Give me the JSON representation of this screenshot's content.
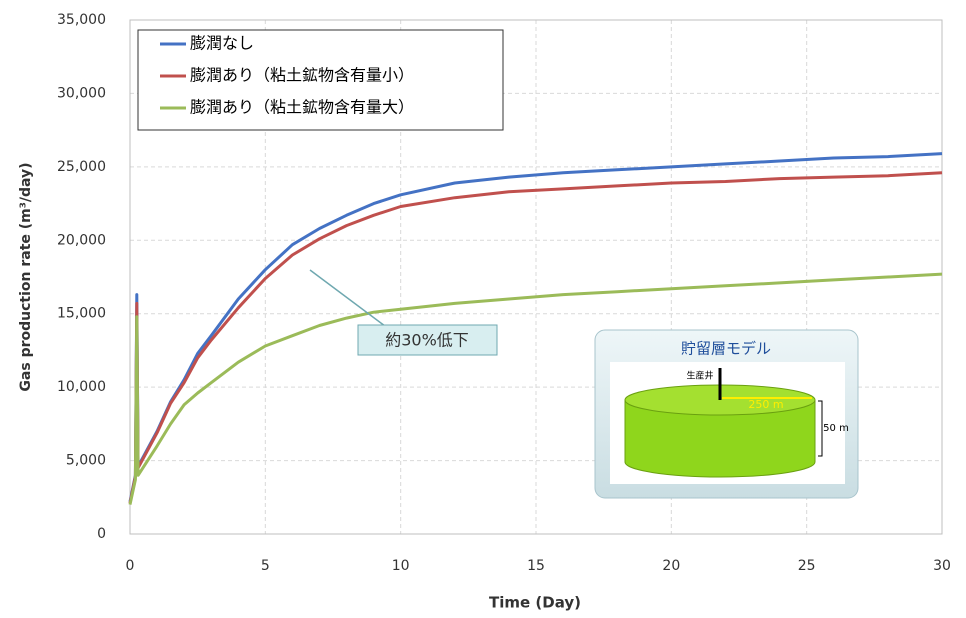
{
  "chart_data": {
    "type": "line",
    "x_label": "Time (Day)",
    "y_label": "Gas production rate (m³/day)",
    "x": [
      0,
      0.2,
      0.25,
      0.3,
      1,
      1.5,
      2,
      2.5,
      3,
      4,
      5,
      6,
      7,
      8,
      9,
      10,
      12,
      14,
      16,
      18,
      20,
      22,
      24,
      26,
      28,
      30
    ],
    "series": [
      {
        "name": "膨潤なし",
        "color": "#4472c4",
        "values": [
          2200,
          4000,
          16300,
          4600,
          7000,
          9000,
          10500,
          12300,
          13500,
          16000,
          18000,
          19700,
          20800,
          21700,
          22500,
          23100,
          23900,
          24300,
          24600,
          24800,
          25000,
          25200,
          25400,
          25600,
          25700,
          25900
        ]
      },
      {
        "name": "膨潤あり（粘土鉱物含有量小）",
        "color": "#c0504d",
        "values": [
          2100,
          3900,
          15700,
          4500,
          6900,
          8900,
          10300,
          12000,
          13200,
          15400,
          17400,
          19000,
          20100,
          21000,
          21700,
          22300,
          22900,
          23300,
          23500,
          23700,
          23900,
          24000,
          24200,
          24300,
          24400,
          24600
        ]
      },
      {
        "name": "膨潤あり（粘土鉱物含有量大）",
        "color": "#9bbb59",
        "values": [
          2000,
          3700,
          14800,
          4000,
          6000,
          7500,
          8800,
          9600,
          10300,
          11700,
          12800,
          13500,
          14200,
          14700,
          15100,
          15300,
          15700,
          16000,
          16300,
          16500,
          16700,
          16900,
          17100,
          17300,
          17500,
          17700
        ]
      }
    ],
    "xlim": [
      0,
      30
    ],
    "xticks": [
      0,
      5,
      10,
      15,
      20,
      25,
      30
    ],
    "ylim": [
      0,
      35000
    ],
    "yticks": [
      0,
      {
        "value": 5000,
        "label": "5,000"
      },
      {
        "value": 10000,
        "label": "10,000"
      },
      {
        "value": 15000,
        "label": "15,000"
      },
      {
        "value": 20000,
        "label": "20,000"
      },
      {
        "value": 25000,
        "label": "25,000"
      },
      {
        "value": 30000,
        "label": "30,000"
      },
      {
        "value": 35000,
        "label": "35,000"
      }
    ],
    "grid": true,
    "legend": "upper left",
    "annotation": "約30%低下",
    "inset": {
      "title": "貯留層モデル",
      "well_label": "生産井",
      "radius_label": "250 m",
      "height_label": "50 m"
    }
  }
}
